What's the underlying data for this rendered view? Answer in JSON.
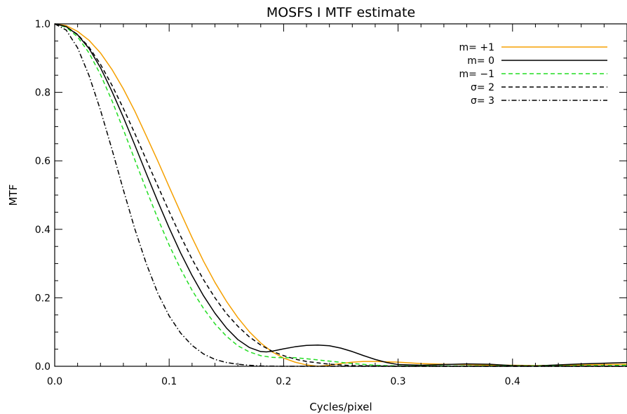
{
  "chart_data": {
    "type": "line",
    "title": "MOSFS I MTF estimate",
    "xlabel": "Cycles/pixel",
    "ylabel": "MTF",
    "xlim": [
      0.0,
      0.5
    ],
    "ylim": [
      0.0,
      1.0
    ],
    "xticks": [
      0.0,
      0.1,
      0.2,
      0.3,
      0.4
    ],
    "xtick_labels": [
      "0.0",
      "0.1",
      "0.2",
      "0.3",
      "0.4"
    ],
    "yticks": [
      0.0,
      0.2,
      0.4,
      0.6,
      0.8,
      1.0
    ],
    "ytick_labels": [
      "0.0",
      "0.2",
      "0.4",
      "0.6",
      "0.8",
      "1.0"
    ],
    "grid": false,
    "legend_position": "top-right",
    "series": [
      {
        "name": "m=  +1",
        "color": "#f5a000",
        "dash": "solid",
        "x": [
          0.0,
          0.01,
          0.02,
          0.03,
          0.04,
          0.05,
          0.06,
          0.07,
          0.08,
          0.09,
          0.1,
          0.11,
          0.12,
          0.13,
          0.14,
          0.15,
          0.16,
          0.17,
          0.18,
          0.19,
          0.2,
          0.21,
          0.22,
          0.23,
          0.24,
          0.25,
          0.26,
          0.27,
          0.28,
          0.3,
          0.32,
          0.34,
          0.36,
          0.38,
          0.4,
          0.42,
          0.44,
          0.46,
          0.48,
          0.5
        ],
        "y": [
          1.0,
          0.995,
          0.978,
          0.952,
          0.915,
          0.867,
          0.81,
          0.745,
          0.673,
          0.6,
          0.524,
          0.449,
          0.376,
          0.307,
          0.245,
          0.19,
          0.142,
          0.101,
          0.068,
          0.042,
          0.024,
          0.012,
          0.004,
          0.0,
          0.003,
          0.008,
          0.012,
          0.014,
          0.014,
          0.012,
          0.008,
          0.006,
          0.005,
          0.003,
          0.003,
          0.002,
          0.003,
          0.004,
          0.005,
          0.006
        ]
      },
      {
        "name": "m=   0",
        "color": "#000000",
        "dash": "solid",
        "x": [
          0.0,
          0.01,
          0.02,
          0.03,
          0.04,
          0.05,
          0.06,
          0.07,
          0.08,
          0.09,
          0.1,
          0.11,
          0.12,
          0.13,
          0.14,
          0.15,
          0.16,
          0.17,
          0.18,
          0.185,
          0.19,
          0.2,
          0.21,
          0.22,
          0.23,
          0.24,
          0.25,
          0.26,
          0.27,
          0.28,
          0.29,
          0.3,
          0.32,
          0.34,
          0.36,
          0.38,
          0.4,
          0.42,
          0.44,
          0.46,
          0.48,
          0.5
        ],
        "y": [
          1.0,
          0.992,
          0.968,
          0.928,
          0.872,
          0.803,
          0.727,
          0.646,
          0.563,
          0.482,
          0.404,
          0.331,
          0.265,
          0.206,
          0.155,
          0.112,
          0.078,
          0.055,
          0.043,
          0.042,
          0.044,
          0.051,
          0.057,
          0.061,
          0.062,
          0.06,
          0.053,
          0.043,
          0.031,
          0.02,
          0.011,
          0.005,
          0.003,
          0.005,
          0.007,
          0.006,
          0.002,
          0.001,
          0.004,
          0.007,
          0.009,
          0.011
        ]
      },
      {
        "name": "m=  −1",
        "color": "#22dd22",
        "dash": "dashed",
        "x": [
          0.0,
          0.01,
          0.02,
          0.03,
          0.04,
          0.05,
          0.06,
          0.07,
          0.08,
          0.09,
          0.1,
          0.11,
          0.12,
          0.13,
          0.14,
          0.15,
          0.16,
          0.17,
          0.18,
          0.19,
          0.2,
          0.21,
          0.22,
          0.24,
          0.26,
          0.28,
          0.3,
          0.32,
          0.34,
          0.36,
          0.38,
          0.4,
          0.42,
          0.44,
          0.46,
          0.48,
          0.5
        ],
        "y": [
          1.0,
          0.99,
          0.962,
          0.915,
          0.852,
          0.776,
          0.691,
          0.603,
          0.516,
          0.432,
          0.354,
          0.284,
          0.222,
          0.169,
          0.124,
          0.088,
          0.06,
          0.042,
          0.031,
          0.026,
          0.025,
          0.025,
          0.022,
          0.015,
          0.008,
          0.003,
          0.001,
          0.001,
          0.001,
          0.001,
          0.001,
          0.001,
          0.001,
          0.001,
          0.002,
          0.002,
          0.003
        ]
      },
      {
        "name": "σ=  2",
        "color": "#000000",
        "dash": "dashed",
        "x": [
          0.0,
          0.01,
          0.02,
          0.03,
          0.04,
          0.05,
          0.06,
          0.07,
          0.08,
          0.09,
          0.1,
          0.11,
          0.12,
          0.13,
          0.14,
          0.15,
          0.16,
          0.17,
          0.18,
          0.19,
          0.2,
          0.21,
          0.22,
          0.24,
          0.26,
          0.28,
          0.3,
          0.35,
          0.4,
          0.45,
          0.5
        ],
        "y": [
          1.0,
          0.992,
          0.969,
          0.932,
          0.882,
          0.821,
          0.753,
          0.68,
          0.603,
          0.527,
          0.452,
          0.38,
          0.313,
          0.253,
          0.2,
          0.154,
          0.117,
          0.086,
          0.062,
          0.044,
          0.031,
          0.021,
          0.014,
          0.006,
          0.002,
          0.001,
          0.0,
          0.0,
          0.0,
          0.0,
          0.0
        ]
      },
      {
        "name": "σ=  3",
        "color": "#000000",
        "dash": "dashdot",
        "x": [
          0.0,
          0.01,
          0.02,
          0.03,
          0.04,
          0.05,
          0.06,
          0.07,
          0.08,
          0.09,
          0.1,
          0.11,
          0.12,
          0.13,
          0.14,
          0.15,
          0.16,
          0.17,
          0.18,
          0.2,
          0.25,
          0.3,
          0.4,
          0.5
        ],
        "y": [
          1.0,
          0.982,
          0.93,
          0.849,
          0.748,
          0.634,
          0.515,
          0.401,
          0.3,
          0.214,
          0.147,
          0.097,
          0.061,
          0.036,
          0.02,
          0.011,
          0.006,
          0.003,
          0.001,
          0.0,
          0.0,
          0.0,
          0.0,
          0.0
        ]
      }
    ]
  }
}
